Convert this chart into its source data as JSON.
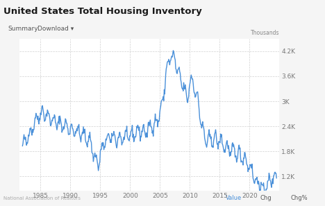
{
  "title": "United States Total Housing Inventory",
  "subtitle_left": "Summary",
  "subtitle_download": "Download ▾",
  "ylabel_units": "Thousands",
  "footer_left": "National Association of Realtors",
  "footer_right_items": [
    "Value",
    "Chg",
    "Chg%"
  ],
  "footer_value_color": "#4a90d9",
  "line_color": "#4a90d9",
  "line_width": 1.0,
  "fig_bg_color": "#f5f5f5",
  "chart_bg_color": "#ffffff",
  "header_bg_color": "#ebebeb",
  "tabs_bg_color": "#ffffff",
  "grid_color": "#d0d0d0",
  "ytick_labels": [
    "1.2K",
    "1.8K",
    "2.4K",
    "3K",
    "3.6K",
    "4.2K"
  ],
  "ytick_values": [
    1200,
    1800,
    2400,
    3000,
    3600,
    4200
  ],
  "ylim": [
    850,
    4500
  ],
  "xlim": [
    1981.5,
    2025.0
  ],
  "xtick_labels": [
    "1985",
    "1990",
    "1995",
    "2000",
    "2005",
    "2010",
    "2015",
    "2020"
  ],
  "xtick_values": [
    1985,
    1990,
    1995,
    2000,
    2005,
    2010,
    2015,
    2020
  ],
  "anchor_points": [
    [
      1982.0,
      1900
    ],
    [
      1982.5,
      2050
    ],
    [
      1983.5,
      2300
    ],
    [
      1984.0,
      2500
    ],
    [
      1985.0,
      2700
    ],
    [
      1985.5,
      2750
    ],
    [
      1986.5,
      2600
    ],
    [
      1987.5,
      2500
    ],
    [
      1988.5,
      2450
    ],
    [
      1989.5,
      2380
    ],
    [
      1990.5,
      2300
    ],
    [
      1991.5,
      2250
    ],
    [
      1992.5,
      2150
    ],
    [
      1993.5,
      2000
    ],
    [
      1994.0,
      1650
    ],
    [
      1994.7,
      1500
    ],
    [
      1995.5,
      1950
    ],
    [
      1996.5,
      2150
    ],
    [
      1997.5,
      2100
    ],
    [
      1998.5,
      2100
    ],
    [
      1999.5,
      2150
    ],
    [
      2000.5,
      2200
    ],
    [
      2001.5,
      2300
    ],
    [
      2002.5,
      2250
    ],
    [
      2003.5,
      2400
    ],
    [
      2004.5,
      2500
    ],
    [
      2005.5,
      3000
    ],
    [
      2006.0,
      3700
    ],
    [
      2006.8,
      4100
    ],
    [
      2007.5,
      4000
    ],
    [
      2008.0,
      3700
    ],
    [
      2008.5,
      3500
    ],
    [
      2009.0,
      3350
    ],
    [
      2009.5,
      3000
    ],
    [
      2010.0,
      3450
    ],
    [
      2010.5,
      3500
    ],
    [
      2011.0,
      3200
    ],
    [
      2011.5,
      2900
    ],
    [
      2012.0,
      2400
    ],
    [
      2012.5,
      2100
    ],
    [
      2013.0,
      2050
    ],
    [
      2014.0,
      2100
    ],
    [
      2015.0,
      2050
    ],
    [
      2016.0,
      1900
    ],
    [
      2017.0,
      1800
    ],
    [
      2018.0,
      1750
    ],
    [
      2019.0,
      1650
    ],
    [
      2020.0,
      1450
    ],
    [
      2021.0,
      1100
    ],
    [
      2021.5,
      1000
    ],
    [
      2022.0,
      950
    ],
    [
      2022.5,
      880
    ],
    [
      2023.0,
      1000
    ],
    [
      2023.5,
      1100
    ],
    [
      2024.0,
      1180
    ],
    [
      2024.5,
      1200
    ]
  ],
  "noise_seed": 42,
  "noise_std": 55,
  "seasonal_amp": 140
}
